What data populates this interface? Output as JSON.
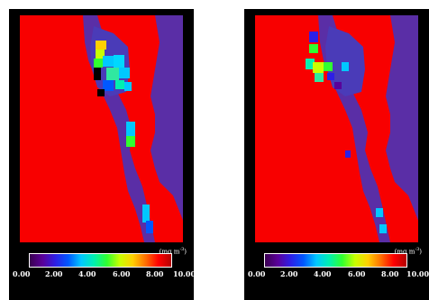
{
  "colorbar": {
    "units_text": "(mg m",
    "units_exp": "-3",
    "units_close": ")",
    "ticks": [
      "0.00",
      "2.00",
      "4.00",
      "6.00",
      "8.00",
      "10.00"
    ],
    "range": [
      0,
      10
    ],
    "palette": [
      "#3a0050",
      "#5a009a",
      "#2d1fe6",
      "#0058ff",
      "#00c8ff",
      "#00f0b0",
      "#30ff30",
      "#c8ff00",
      "#ffd000",
      "#ff7000",
      "#ff0000",
      "#b40000"
    ]
  },
  "colors": {
    "land": "#f80000",
    "water": "#5a2ea6",
    "frame": "#000000",
    "label": "#ffffff"
  }
}
